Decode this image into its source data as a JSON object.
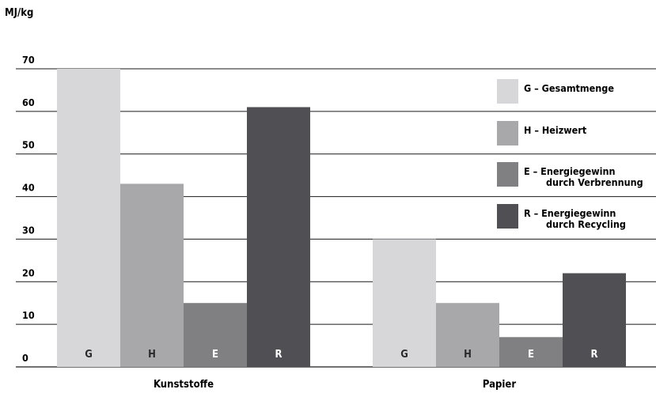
{
  "chart_data": {
    "type": "bar",
    "ylabel": "MJ/kg",
    "ylim": [
      0,
      70
    ],
    "yticks": [
      0,
      10,
      20,
      30,
      40,
      50,
      60,
      70
    ],
    "grid": true,
    "legend_position": "top-right",
    "groups": [
      "Kunststoffe",
      "Papier"
    ],
    "series": [
      {
        "key": "G",
        "legend": [
          "G – Gesamtmenge"
        ],
        "color": "#d7d7d9",
        "values": [
          70,
          30
        ],
        "label_dark": true
      },
      {
        "key": "H",
        "legend": [
          "H – Heizwert"
        ],
        "color": "#a8a8aa",
        "values": [
          43,
          15
        ],
        "label_dark": true
      },
      {
        "key": "E",
        "legend": [
          "E – Energiegewinn",
          "durch Verbrennung"
        ],
        "color": "#808082",
        "values": [
          15,
          7
        ],
        "label_dark": false
      },
      {
        "key": "R",
        "legend": [
          "R – Energiegewinn",
          "durch Recycling"
        ],
        "color": "#505054",
        "values": [
          61,
          22
        ],
        "label_dark": false
      }
    ]
  }
}
